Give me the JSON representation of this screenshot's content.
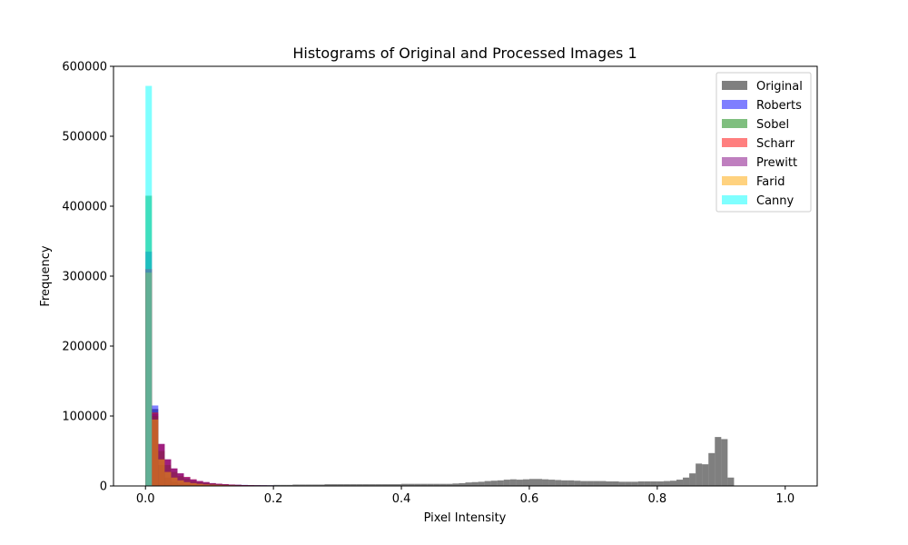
{
  "chart_data": {
    "type": "bar",
    "title": "Histograms of Original and Processed Images 1",
    "xlabel": "Pixel Intensity",
    "ylabel": "Frequency",
    "xlim": [
      -0.05,
      1.05
    ],
    "ylim": [
      0,
      600000
    ],
    "xticks": [
      0.0,
      0.2,
      0.4,
      0.6,
      0.8,
      1.0
    ],
    "xtick_labels": [
      "0.0",
      "0.2",
      "0.4",
      "0.6",
      "0.8",
      "1.0"
    ],
    "yticks": [
      0,
      100000,
      200000,
      300000,
      400000,
      500000,
      600000
    ],
    "ytick_labels": [
      "0",
      "100000",
      "200000",
      "300000",
      "400000",
      "500000",
      "600000"
    ],
    "bins": 100,
    "bin_range": [
      0,
      1
    ],
    "grid": false,
    "legend_position": "top-right",
    "opacity": 0.5,
    "series": [
      {
        "name": "Original",
        "color": "#000000",
        "values": [
          305000,
          110000,
          30000,
          12000,
          6000,
          3500,
          2500,
          2000,
          1500,
          1500,
          1500,
          1200,
          1200,
          1200,
          1200,
          1200,
          1200,
          1200,
          1200,
          1200,
          1500,
          1500,
          1500,
          2000,
          2000,
          2000,
          2000,
          2000,
          2500,
          2500,
          2500,
          2500,
          2500,
          2500,
          2500,
          2500,
          2500,
          2500,
          2500,
          2500,
          3000,
          3000,
          3000,
          3000,
          3000,
          3000,
          3000,
          3000,
          3500,
          4000,
          5000,
          5500,
          6000,
          7000,
          7500,
          8000,
          9000,
          9500,
          9000,
          9500,
          10000,
          10000,
          9500,
          9000,
          8500,
          8000,
          8000,
          7500,
          7000,
          7000,
          7000,
          7000,
          6500,
          6500,
          6000,
          6000,
          6000,
          6500,
          6500,
          6500,
          6500,
          7000,
          7500,
          9000,
          12000,
          18000,
          32000,
          31000,
          47000,
          70000,
          67000,
          12000,
          0,
          0,
          0,
          0,
          0,
          0,
          0,
          0
        ]
      },
      {
        "name": "Roberts",
        "color": "#0000ff",
        "values": [
          335000,
          115000,
          60000,
          38000,
          25000,
          18000,
          12000,
          9000,
          7000,
          5500,
          4000,
          3000,
          2500,
          2000,
          1800,
          1500,
          1200,
          1000,
          900,
          800,
          700,
          600,
          500,
          400,
          350,
          300,
          250,
          200,
          180,
          150,
          120,
          100,
          90,
          80,
          70,
          60,
          50,
          40,
          30,
          20,
          10,
          0,
          0,
          0,
          0,
          0,
          0,
          0,
          0,
          0,
          0,
          0,
          0,
          0,
          0,
          0,
          0,
          0,
          0,
          0,
          0,
          0,
          0,
          0,
          0,
          0,
          0,
          0,
          0,
          0,
          0,
          0,
          0,
          0,
          0,
          0,
          0,
          0,
          0,
          0,
          0,
          0,
          0,
          0,
          0,
          0,
          0,
          0,
          0,
          0,
          0,
          0,
          0,
          0,
          0,
          0,
          0,
          0,
          0,
          0
        ]
      },
      {
        "name": "Sobel",
        "color": "#008000",
        "values": [
          415000,
          100000,
          50000,
          30000,
          20000,
          14000,
          10000,
          7000,
          5500,
          4500,
          3500,
          2800,
          2200,
          1800,
          1500,
          1200,
          1000,
          800,
          700,
          600,
          500,
          400,
          300,
          250,
          200,
          150,
          120,
          100,
          80,
          60,
          50,
          40,
          30,
          20,
          10,
          0,
          0,
          0,
          0,
          0,
          0,
          0,
          0,
          0,
          0,
          0,
          0,
          0,
          0,
          0,
          0,
          0,
          0,
          0,
          0,
          0,
          0,
          0,
          0,
          0,
          0,
          0,
          0,
          0,
          0,
          0,
          0,
          0,
          0,
          0,
          0,
          0,
          0,
          0,
          0,
          0,
          0,
          0,
          0,
          0,
          0,
          0,
          0,
          0,
          0,
          0,
          0,
          0,
          0,
          0,
          0,
          0,
          0,
          0,
          0,
          0,
          0,
          0,
          0,
          0
        ]
      },
      {
        "name": "Scharr",
        "color": "#ff0000",
        "values": [
          310000,
          105000,
          60000,
          38000,
          25000,
          18000,
          13000,
          9500,
          7000,
          5500,
          4000,
          3200,
          2600,
          2000,
          1600,
          1300,
          1100,
          900,
          800,
          700,
          600,
          500,
          400,
          350,
          300,
          250,
          200,
          150,
          120,
          100,
          80,
          60,
          50,
          40,
          30,
          20,
          10,
          0,
          0,
          0,
          0,
          0,
          0,
          0,
          0,
          0,
          0,
          0,
          0,
          0,
          0,
          0,
          0,
          0,
          0,
          0,
          0,
          0,
          0,
          0,
          0,
          0,
          0,
          0,
          0,
          0,
          0,
          0,
          0,
          0,
          0,
          0,
          0,
          0,
          0,
          0,
          0,
          0,
          0,
          0,
          0,
          0,
          0,
          0,
          0,
          0,
          0,
          0,
          0,
          0,
          0,
          0,
          0,
          0,
          0,
          0,
          0,
          0,
          0,
          0
        ]
      },
      {
        "name": "Prewitt",
        "color": "#800080",
        "values": [
          310000,
          103000,
          60000,
          38000,
          25000,
          18000,
          13000,
          9500,
          7000,
          5500,
          4000,
          3200,
          2600,
          2000,
          1600,
          1300,
          1100,
          900,
          800,
          700,
          600,
          500,
          400,
          350,
          300,
          250,
          200,
          150,
          120,
          100,
          80,
          60,
          50,
          40,
          30,
          20,
          10,
          0,
          0,
          0,
          0,
          0,
          0,
          0,
          0,
          0,
          0,
          0,
          0,
          0,
          0,
          0,
          0,
          0,
          0,
          0,
          0,
          0,
          0,
          0,
          0,
          0,
          0,
          0,
          0,
          0,
          0,
          0,
          0,
          0,
          0,
          0,
          0,
          0,
          0,
          0,
          0,
          0,
          0,
          0,
          0,
          0,
          0,
          0,
          0,
          0,
          0,
          0,
          0,
          0,
          0,
          0,
          0,
          0,
          0,
          0,
          0,
          0,
          0,
          0
        ]
      },
      {
        "name": "Farid",
        "color": "#ffa500",
        "values": [
          305000,
          95000,
          38000,
          20000,
          12000,
          8000,
          5500,
          4000,
          3000,
          2200,
          1800,
          1400,
          1100,
          900,
          700,
          600,
          500,
          400,
          300,
          250,
          200,
          150,
          120,
          100,
          80,
          60,
          50,
          40,
          30,
          20,
          10,
          0,
          0,
          0,
          0,
          0,
          0,
          0,
          0,
          0,
          0,
          0,
          0,
          0,
          0,
          0,
          0,
          0,
          0,
          0,
          0,
          0,
          0,
          0,
          0,
          0,
          0,
          0,
          0,
          0,
          0,
          0,
          0,
          0,
          0,
          0,
          0,
          0,
          0,
          0,
          0,
          0,
          0,
          0,
          0,
          0,
          0,
          0,
          0,
          0,
          0,
          0,
          0,
          0,
          0,
          0,
          0,
          0,
          0,
          0,
          0,
          0,
          0,
          0,
          0,
          0,
          0,
          0,
          0,
          0
        ]
      },
      {
        "name": "Canny",
        "color": "#00ffff",
        "values": [
          572000,
          0,
          0,
          0,
          0,
          0,
          0,
          0,
          0,
          0,
          0,
          0,
          0,
          0,
          0,
          0,
          0,
          0,
          0,
          0,
          0,
          0,
          0,
          0,
          0,
          0,
          0,
          0,
          0,
          0,
          0,
          0,
          0,
          0,
          0,
          0,
          0,
          0,
          0,
          0,
          0,
          0,
          0,
          0,
          0,
          0,
          0,
          0,
          0,
          0,
          0,
          0,
          0,
          0,
          0,
          0,
          0,
          0,
          0,
          0,
          0,
          0,
          0,
          0,
          0,
          0,
          0,
          0,
          0,
          0,
          0,
          0,
          0,
          0,
          0,
          0,
          0,
          0,
          0,
          0,
          0,
          0,
          0,
          0,
          0,
          0,
          0,
          0,
          0,
          0,
          0,
          0,
          0,
          0,
          0,
          0,
          0,
          0,
          0,
          0
        ]
      }
    ]
  }
}
